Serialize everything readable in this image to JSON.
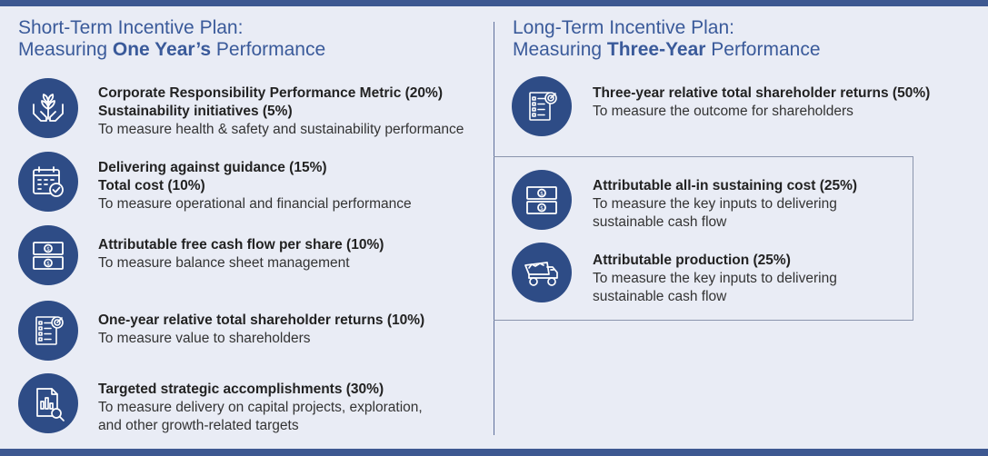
{
  "short_term": {
    "title_line1": "Short-Term Incentive Plan:",
    "title_prefix": "Measuring ",
    "title_strong": "One Year’s",
    "title_suffix": " Performance",
    "items": [
      {
        "icon": "hands-plant-icon",
        "bold1": "Corporate Responsibility Performance Metric (20%)",
        "bold2": "Sustainability initiatives (5%)",
        "desc": "To measure health & safety and sustainability performance"
      },
      {
        "icon": "calendar-check-icon",
        "bold1": "Delivering against guidance (15%)",
        "bold2": "Total cost (10%)",
        "desc": "To measure operational and financial performance"
      },
      {
        "icon": "banknotes-icon",
        "bold1": "Attributable free cash flow per share (10%)",
        "desc": "To measure balance sheet management"
      },
      {
        "icon": "checklist-target-icon",
        "bold1": "One-year relative total shareholder returns (10%)",
        "desc": "To measure value to shareholders"
      },
      {
        "icon": "report-magnifier-icon",
        "bold1": "Targeted strategic accomplishments (30%)",
        "desc1": "To measure delivery on capital projects, exploration,",
        "desc2": "and other growth-related targets"
      }
    ]
  },
  "long_term": {
    "title_line1": "Long-Term Incentive Plan:",
    "title_prefix": "Measuring ",
    "title_strong": "Three-Year",
    "title_suffix": " Performance",
    "items": [
      {
        "icon": "checklist-target-icon",
        "bold1": "Three-year relative total shareholder returns (50%)",
        "desc": "To measure the outcome for shareholders"
      },
      {
        "icon": "banknotes-icon",
        "bold1": "Attributable all-in sustaining cost (25%)",
        "desc1": "To measure the key inputs to delivering",
        "desc2": "sustainable cash flow"
      },
      {
        "icon": "mining-truck-icon",
        "bold1": "Attributable production (25%)",
        "desc1": "To measure the key inputs to delivering",
        "desc2": "sustainable cash flow"
      }
    ]
  },
  "colors": {
    "accent": "#2e4c86",
    "title": "#3a5a9a",
    "background": "#e9ecf5",
    "bar": "#3d5891"
  }
}
